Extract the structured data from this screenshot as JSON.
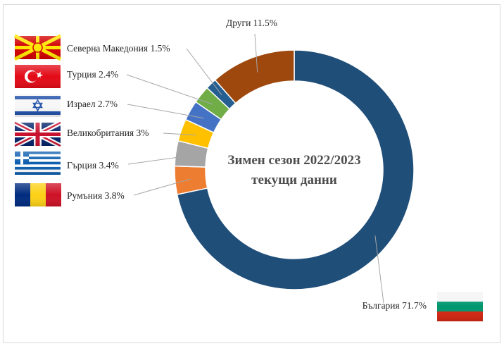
{
  "chart_data": {
    "type": "pie",
    "title": "Зимен сезон 2022/2023",
    "subtitle": "текущи данни",
    "slices": [
      {
        "label": "България",
        "value": 71.7,
        "value_label": "71.7%",
        "color": "#1f4e79"
      },
      {
        "label": "Румъния",
        "value": 3.8,
        "value_label": "3.8%",
        "color": "#ed7d31"
      },
      {
        "label": "Гърция",
        "value": 3.4,
        "value_label": "3.4%",
        "color": "#a5a5a5"
      },
      {
        "label": "Великобритания",
        "value": 3,
        "value_label": "3%",
        "color": "#ffc000"
      },
      {
        "label": "Израел",
        "value": 2.7,
        "value_label": "2.7%",
        "color": "#4472c4"
      },
      {
        "label": "Турция",
        "value": 2.4,
        "value_label": "2.4%",
        "color": "#70ad47"
      },
      {
        "label": "Северна Македония",
        "value": 1.5,
        "value_label": "1.5%",
        "color": "#255e91"
      },
      {
        "label": "Други",
        "value": 11.5,
        "value_label": "11.5%",
        "color": "#9e480e"
      }
    ],
    "flags": [
      "north-macedonia-flag",
      "turkey-flag",
      "israel-flag",
      "uk-flag",
      "greece-flag",
      "romania-flag",
      "bulgaria-flag"
    ],
    "legend": "none"
  }
}
